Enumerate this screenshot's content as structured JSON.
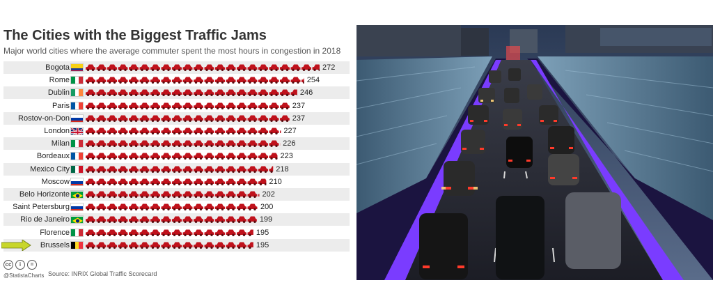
{
  "title": "The Cities with the Biggest Traffic Jams",
  "subtitle": "Major world cities where the average commuter spent the most hours in congestion in 2018",
  "footer": {
    "handle": "@StatistaCharts",
    "source": "Source: INRIX Global Traffic Scorecard",
    "cc_icons": [
      "cc-icon",
      "by-icon",
      "equals-icon"
    ]
  },
  "colors": {
    "car": "#c0121c",
    "shade": "#ececec",
    "arrow": "#c8d62a"
  },
  "photo_label": "",
  "chart_data": {
    "type": "bar",
    "title": "The Cities with the Biggest Traffic Jams",
    "subtitle": "Major world cities where the average commuter spent the most hours in congestion in 2018",
    "unit": "hours",
    "xlim": [
      0,
      272
    ],
    "categories": [
      "Bogota",
      "Rome",
      "Dublin",
      "Paris",
      "Rostov-on-Don",
      "London",
      "Milan",
      "Bordeaux",
      "Mexico City",
      "Moscow",
      "Belo Horizonte",
      "Saint Petersburg",
      "Rio de Janeiro",
      "Florence",
      "Brussels"
    ],
    "values": [
      272,
      254,
      246,
      237,
      237,
      227,
      226,
      223,
      218,
      210,
      202,
      200,
      199,
      195,
      195
    ],
    "flags": [
      "colombia",
      "italy",
      "ireland",
      "france",
      "russia",
      "uk",
      "italy",
      "france",
      "mexico",
      "russia",
      "brazil",
      "russia",
      "brazil",
      "italy",
      "belgium"
    ],
    "highlight": "Brussels"
  }
}
